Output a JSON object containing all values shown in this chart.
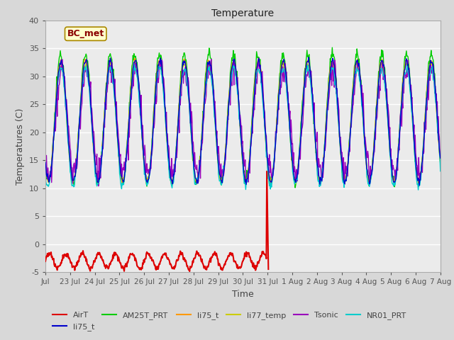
{
  "title": "Temperature",
  "xlabel": "Time",
  "ylabel": "Temperatures (C)",
  "ylim": [
    -5,
    40
  ],
  "yticks": [
    -5,
    0,
    5,
    10,
    15,
    20,
    25,
    30,
    35,
    40
  ],
  "plot_bg_color": "#ebebeb",
  "fig_bg_color": "#d8d8d8",
  "annotation_text": "BC_met",
  "annotation_color": "#8b0000",
  "annotation_bg": "#ffffcc",
  "series": {
    "AirT": {
      "color": "#dd0000"
    },
    "li75_blue": {
      "color": "#0000cc"
    },
    "AM25T_PRT": {
      "color": "#00cc00"
    },
    "li75_orange": {
      "color": "#ff9900"
    },
    "li77_temp": {
      "color": "#cccc00"
    },
    "Tsonic": {
      "color": "#9900bb"
    },
    "NR01_PRT": {
      "color": "#00cccc"
    }
  },
  "legend": [
    {
      "label": "AirT",
      "color": "#dd0000"
    },
    {
      "label": "li75_t",
      "color": "#0000cc"
    },
    {
      "label": "AM25T_PRT",
      "color": "#00cc00"
    },
    {
      "label": "li75_t",
      "color": "#ff9900"
    },
    {
      "label": "li77_temp",
      "color": "#cccc00"
    },
    {
      "label": "Tsonic",
      "color": "#9900bb"
    },
    {
      "label": "NR01_PRT",
      "color": "#00cccc"
    }
  ],
  "tick_labels": [
    "Jul",
    "23 Jul",
    "24 Jul",
    "25 Jul",
    "26 Jul",
    "27 Jul",
    "28 Jul",
    "29 Jul",
    "30 Jul",
    "31 Jul",
    "1 Aug",
    "2 Aug",
    "3 Aug",
    "4 Aug",
    "5 Aug",
    "6 Aug",
    "7 Aug"
  ]
}
